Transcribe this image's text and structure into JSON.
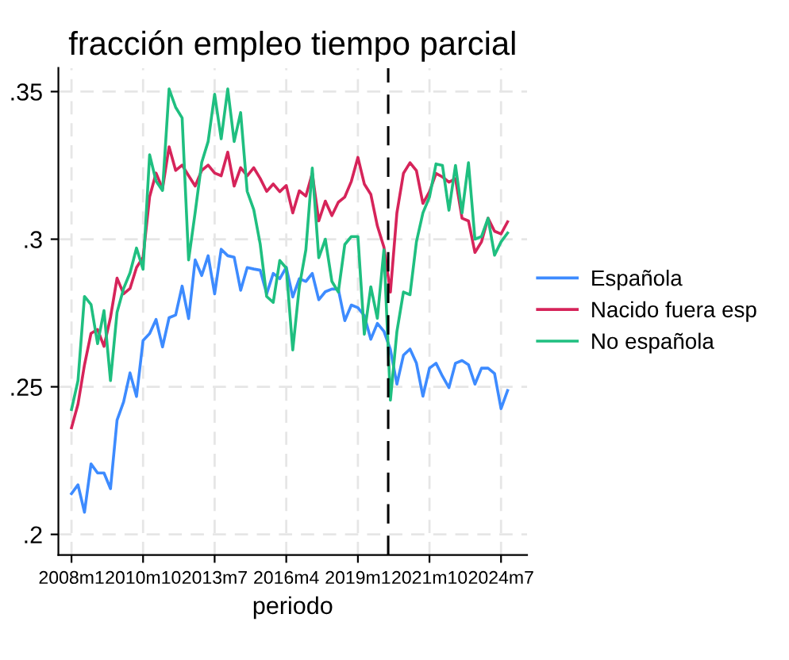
{
  "chart_data": {
    "type": "line",
    "title": "fracción empleo tiempo parcial",
    "xlabel": "periodo",
    "x": [
      "2008-01",
      "2008-04",
      "2008-07",
      "2008-10",
      "2009-01",
      "2009-04",
      "2009-07",
      "2009-10",
      "2010-01",
      "2010-04",
      "2010-07",
      "2010-10",
      "2011-01",
      "2011-04",
      "2011-07",
      "2011-10",
      "2012-01",
      "2012-04",
      "2012-07",
      "2012-10",
      "2013-01",
      "2013-04",
      "2013-07",
      "2013-10",
      "2014-01",
      "2014-04",
      "2014-07",
      "2014-10",
      "2015-01",
      "2015-04",
      "2015-07",
      "2015-10",
      "2016-01",
      "2016-04",
      "2016-07",
      "2016-10",
      "2017-01",
      "2017-04",
      "2017-07",
      "2017-10",
      "2018-01",
      "2018-04",
      "2018-07",
      "2018-10",
      "2019-01",
      "2019-04",
      "2019-07",
      "2019-10",
      "2020-01",
      "2020-04",
      "2020-07",
      "2020-10",
      "2021-01",
      "2021-04",
      "2021-07",
      "2021-10",
      "2022-01",
      "2022-04",
      "2022-07",
      "2022-10",
      "2023-01",
      "2023-04",
      "2023-07",
      "2023-10",
      "2024-01",
      "2024-04",
      "2024-07",
      "2024-10"
    ],
    "series": [
      {
        "name": "Española",
        "color": "#3d8bff",
        "values": [
          0.2138,
          0.2168,
          0.2075,
          0.2239,
          0.2208,
          0.2208,
          0.2155,
          0.2387,
          0.2449,
          0.2547,
          0.2467,
          0.2657,
          0.268,
          0.2728,
          0.2635,
          0.2734,
          0.2743,
          0.2841,
          0.2731,
          0.293,
          0.2877,
          0.2944,
          0.2815,
          0.2966,
          0.2944,
          0.2939,
          0.2827,
          0.2904,
          0.2899,
          0.2895,
          0.2815,
          0.2884,
          0.2866,
          0.2905,
          0.2804,
          0.2866,
          0.2857,
          0.2884,
          0.2795,
          0.2822,
          0.2831,
          0.2831,
          0.2724,
          0.2777,
          0.2768,
          0.2741,
          0.2661,
          0.2715,
          0.2688,
          0.2626,
          0.2509,
          0.2607,
          0.2628,
          0.258,
          0.2468,
          0.2563,
          0.258,
          0.2536,
          0.2497,
          0.258,
          0.2589,
          0.2575,
          0.2509,
          0.2563,
          0.2563,
          0.2545,
          0.2426,
          0.2487
        ]
      },
      {
        "name": "Nacido fuera esp",
        "color": "#d6245a",
        "values": [
          0.2361,
          0.2441,
          0.2574,
          0.2681,
          0.2694,
          0.2637,
          0.2735,
          0.2868,
          0.2815,
          0.2833,
          0.2904,
          0.2939,
          0.3144,
          0.3224,
          0.3171,
          0.3313,
          0.3233,
          0.3251,
          0.3215,
          0.318,
          0.3233,
          0.3251,
          0.3224,
          0.3215,
          0.3295,
          0.318,
          0.3242,
          0.3215,
          0.3242,
          0.3206,
          0.3162,
          0.3187,
          0.3161,
          0.3182,
          0.3089,
          0.3164,
          0.3146,
          0.3223,
          0.3062,
          0.3129,
          0.308,
          0.3125,
          0.3143,
          0.3196,
          0.3277,
          0.3187,
          0.3152,
          0.3045,
          0.2973,
          0.2821,
          0.3089,
          0.3223,
          0.3259,
          0.3232,
          0.3121,
          0.3161,
          0.3223,
          0.3211,
          0.3193,
          0.3205,
          0.3071,
          0.3062,
          0.2955,
          0.2991,
          0.3071,
          0.3027,
          0.3018,
          0.3059
        ]
      },
      {
        "name": "No española",
        "color": "#1fbf80",
        "values": [
          0.2423,
          0.2521,
          0.2806,
          0.2779,
          0.2646,
          0.2758,
          0.2521,
          0.2752,
          0.2833,
          0.2886,
          0.297,
          0.2898,
          0.3286,
          0.3197,
          0.3165,
          0.3509,
          0.3447,
          0.3411,
          0.293,
          0.3091,
          0.326,
          0.3331,
          0.3491,
          0.334,
          0.3509,
          0.3331,
          0.3429,
          0.3162,
          0.31,
          0.2984,
          0.2806,
          0.2786,
          0.2928,
          0.2902,
          0.2625,
          0.2839,
          0.2964,
          0.3241,
          0.2937,
          0.3,
          0.2857,
          0.2821,
          0.2982,
          0.3009,
          0.3009,
          0.2678,
          0.2839,
          0.2732,
          0.2964,
          0.2455,
          0.2687,
          0.2821,
          0.2812,
          0.2991,
          0.3089,
          0.3143,
          0.3255,
          0.325,
          0.3098,
          0.325,
          0.3089,
          0.3259,
          0.3,
          0.3009,
          0.3071,
          0.2946,
          0.2991,
          0.3021
        ]
      }
    ],
    "xlim": [
      "2007-07",
      "2025-07"
    ],
    "xticks": [
      {
        "value": "2008-01",
        "label": "2008m1"
      },
      {
        "value": "2010-10",
        "label": "2010m10"
      },
      {
        "value": "2013-07",
        "label": "2013m7"
      },
      {
        "value": "2016-04",
        "label": "2016m4"
      },
      {
        "value": "2019-01",
        "label": "2019m1"
      },
      {
        "value": "2021-10",
        "label": "2021m10"
      },
      {
        "value": "2024-07",
        "label": "2024m7"
      }
    ],
    "ylim": [
      0.193,
      0.358
    ],
    "yticks": [
      {
        "value": 0.2,
        "label": ".2"
      },
      {
        "value": 0.25,
        "label": ".25"
      },
      {
        "value": 0.3,
        "label": ".3"
      },
      {
        "value": 0.35,
        "label": ".35"
      }
    ],
    "ref_lines": [
      {
        "axis": "x",
        "value": "2020-03",
        "color": "#000000",
        "line_style": "dashed"
      }
    ],
    "grid": true,
    "legend": "right",
    "marker": "none",
    "line_style": "solid"
  }
}
